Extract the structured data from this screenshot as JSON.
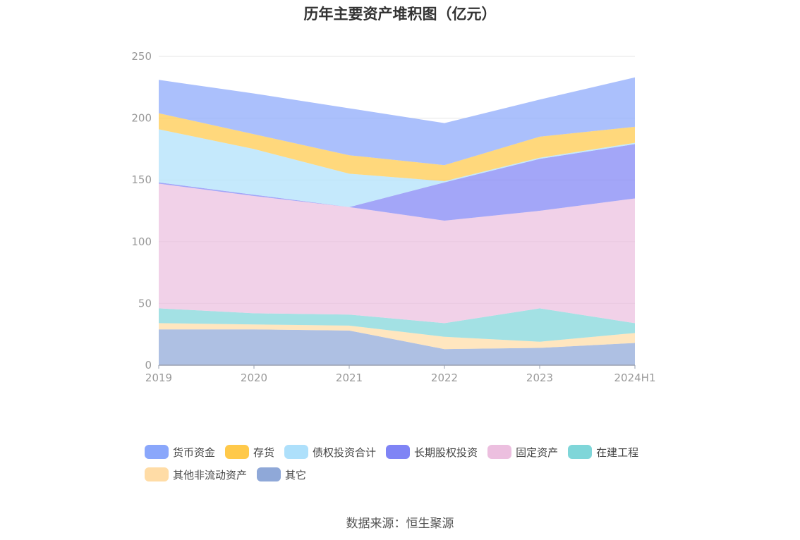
{
  "source_text": "数据来源：恒生聚源",
  "chart_data": {
    "type": "area",
    "stacked": true,
    "title": "历年主要资产堆积图（亿元）",
    "categories": [
      "2019",
      "2020",
      "2021",
      "2022",
      "2023",
      "2024H1"
    ],
    "ylim": [
      0,
      250
    ],
    "yticks": [
      0,
      50,
      100,
      150,
      200,
      250
    ],
    "grid": true,
    "legend_position": "bottom",
    "series": [
      {
        "name": "其它",
        "color": "#8fa8d8",
        "values": [
          29,
          29,
          28,
          13,
          14,
          18
        ]
      },
      {
        "name": "其他非流动资产",
        "color": "#ffdca6",
        "values": [
          5,
          4,
          4,
          10,
          5,
          8
        ]
      },
      {
        "name": "在建工程",
        "color": "#7fd6d9",
        "values": [
          12,
          9,
          9,
          11,
          27,
          8
        ]
      },
      {
        "name": "固定资产",
        "color": "#ecbfdf",
        "values": [
          101,
          95,
          87,
          83,
          79,
          101
        ]
      },
      {
        "name": "长期股权投资",
        "color": "#7f84f5",
        "values": [
          1,
          1,
          0,
          31,
          42,
          44
        ]
      },
      {
        "name": "债权投资合计",
        "color": "#aee0fb",
        "values": [
          43,
          37,
          27,
          1,
          1,
          1
        ]
      },
      {
        "name": "存货",
        "color": "#ffc94a",
        "values": [
          13,
          12,
          15,
          13,
          17,
          13
        ]
      },
      {
        "name": "货币资金",
        "color": "#8aa7fb",
        "values": [
          27,
          33,
          38,
          34,
          30,
          40
        ]
      }
    ],
    "legend_order": [
      "货币资金",
      "存货",
      "债权投资合计",
      "长期股权投资",
      "固定资产",
      "在建工程",
      "其他非流动资产",
      "其它"
    ]
  }
}
